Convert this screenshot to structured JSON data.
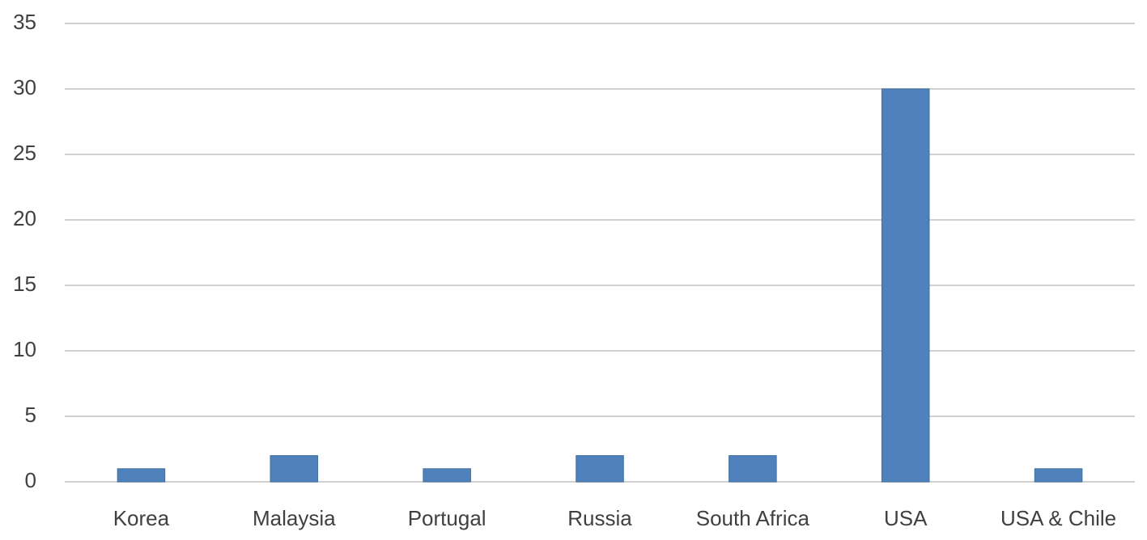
{
  "chart_data": {
    "type": "bar",
    "categories": [
      "Korea",
      "Malaysia",
      "Portugal",
      "Russia",
      "South Africa",
      "USA",
      "USA & Chile"
    ],
    "values": [
      1,
      2,
      1,
      2,
      2,
      30,
      1
    ],
    "color": "#4f81bd",
    "ylim": [
      0,
      35
    ],
    "yticks": [
      0,
      5,
      10,
      15,
      20,
      25,
      30,
      35
    ],
    "grid": true
  }
}
